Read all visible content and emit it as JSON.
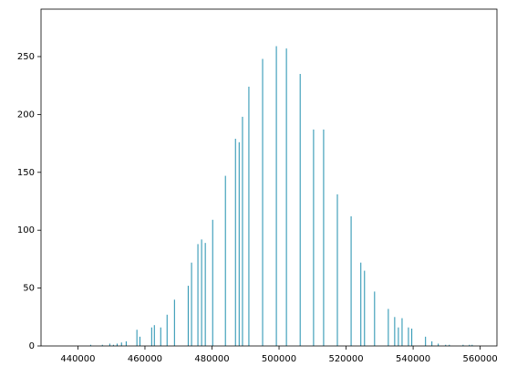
{
  "chart_data": {
    "type": "bar",
    "color": "#1f8fae",
    "x": [
      443800,
      447300,
      449500,
      450600,
      451700,
      453000,
      454400,
      457600,
      458500,
      462000,
      462800,
      464700,
      466600,
      468800,
      472900,
      473900,
      475800,
      476900,
      478000,
      480200,
      484000,
      487000,
      488100,
      489100,
      491000,
      495100,
      499200,
      502200,
      506300,
      510300,
      513300,
      517400,
      521500,
      524400,
      525500,
      528500,
      532600,
      534500,
      535600,
      536700,
      538600,
      539600,
      543700,
      545600,
      547500,
      549700,
      550800,
      554900,
      556800,
      557600
    ],
    "values": [
      1,
      1,
      2,
      1,
      2,
      3,
      4,
      14,
      8,
      16,
      18,
      16,
      27,
      40,
      52,
      72,
      88,
      92,
      89,
      109,
      147,
      179,
      176,
      198,
      224,
      248,
      259,
      257,
      235,
      187,
      187,
      131,
      112,
      72,
      65,
      47,
      32,
      25,
      16,
      24,
      16,
      15,
      8,
      4,
      2,
      1,
      1,
      1,
      1,
      1
    ],
    "xlim": [
      429000,
      565000
    ],
    "ylim": [
      0,
      291
    ],
    "xticks": [
      440000,
      460000,
      480000,
      500000,
      520000,
      540000,
      560000
    ],
    "yticks": [
      0,
      50,
      100,
      150,
      200,
      250
    ]
  }
}
